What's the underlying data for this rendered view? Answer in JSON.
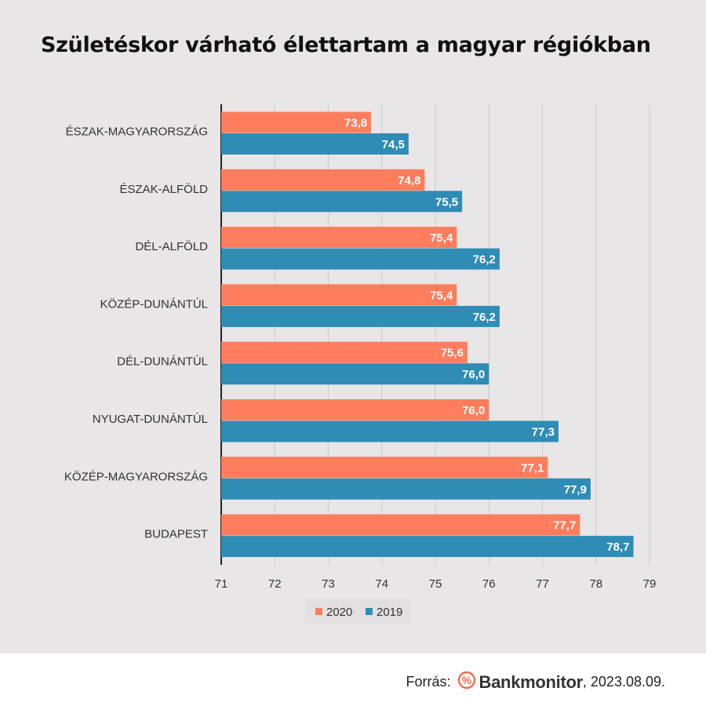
{
  "chart_data": {
    "type": "bar",
    "orientation": "horizontal",
    "title": "Születéskor várható élettartam a magyar régiókban",
    "categories": [
      "ÉSZAK-MAGYARORSZÁG",
      "ÉSZAK-ALFÖLD",
      "DÉL-ALFÖLD",
      "KÖZÉP-DUNÁNTÚL",
      "DÉL-DUNÁNTÚL",
      "NYUGAT-DUNÁNTÚL",
      "KÖZÉP-MAGYARORSZÁG",
      "BUDAPEST"
    ],
    "series": [
      {
        "name": "2020",
        "color": "#fd7d5c",
        "values": [
          73.8,
          74.8,
          75.4,
          75.4,
          75.6,
          76.0,
          77.1,
          77.7
        ]
      },
      {
        "name": "2019",
        "color": "#2f8cb5",
        "values": [
          74.5,
          75.5,
          76.2,
          76.2,
          76.0,
          77.3,
          77.9,
          78.7
        ]
      }
    ],
    "xlim": [
      71,
      79
    ],
    "ticks": [
      71,
      72,
      73,
      74,
      75,
      76,
      77,
      78,
      79
    ],
    "grid": true,
    "legend_position": "bottom-center",
    "xlabel": "",
    "ylabel": ""
  },
  "footer": {
    "source_label": "Forrás:",
    "brand": "Bankmonitor",
    "date": ", 2023.08.09."
  },
  "colors": {
    "panel_background": "#e8e6e7",
    "gridline": "#cccccc",
    "axis": "#222222"
  }
}
